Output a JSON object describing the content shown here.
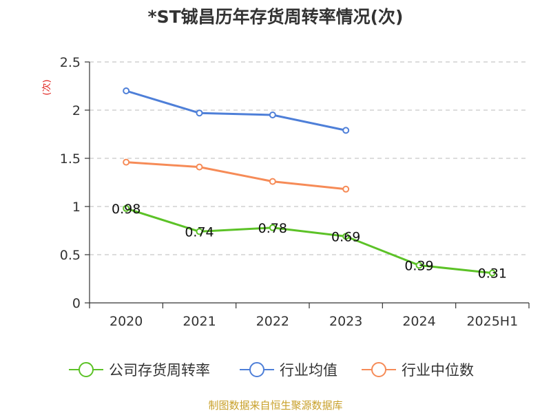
{
  "colors": {
    "company": "#5cc227",
    "industry_avg": "#4e7fd8",
    "industry_median": "#f68b57",
    "grid": "#c8c8c8",
    "axis": "#333333",
    "unit": "#e0201b",
    "source": "#c8a02a"
  },
  "source_text": "制图数据来自恒生聚源数据库",
  "chart_data": {
    "type": "line",
    "title": "*ST铖昌历年存货周转率情况(次)",
    "ylabel": "(次)",
    "xlabel": "",
    "categories": [
      "2020",
      "2021",
      "2022",
      "2023",
      "2024",
      "2025H1"
    ],
    "ylim": [
      0,
      2.5
    ],
    "yticks": [
      "0",
      "0.5",
      "1",
      "1.5",
      "2",
      "2.5"
    ],
    "ytick_values": [
      0,
      0.5,
      1,
      1.5,
      2,
      2.5
    ],
    "grid": true,
    "legend_position": "bottom",
    "series": [
      {
        "name": "公司存货周转率",
        "color_key": "company",
        "values": [
          0.98,
          0.74,
          0.78,
          0.69,
          0.39,
          0.31
        ],
        "labels": [
          "0.98",
          "0.74",
          "0.78",
          "0.69",
          "0.39",
          "0.31"
        ]
      },
      {
        "name": "行业均值",
        "color_key": "industry_avg",
        "values": [
          2.2,
          1.97,
          1.95,
          1.79,
          null,
          null
        ]
      },
      {
        "name": "行业中位数",
        "color_key": "industry_median",
        "values": [
          1.46,
          1.41,
          1.26,
          1.18,
          null,
          null
        ]
      }
    ]
  }
}
